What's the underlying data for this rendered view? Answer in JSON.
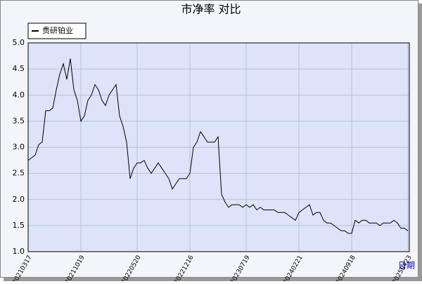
{
  "chart_data": {
    "type": "line",
    "title": "市净率  对比",
    "x_label": "日期",
    "categories": [
      "20210317",
      null,
      null,
      null,
      null,
      null,
      null,
      null,
      null,
      null,
      null,
      null,
      null,
      null,
      null,
      "20211019",
      null,
      null,
      null,
      null,
      null,
      null,
      null,
      null,
      null,
      null,
      null,
      null,
      null,
      null,
      null,
      "20220520",
      null,
      null,
      null,
      null,
      null,
      null,
      null,
      null,
      null,
      null,
      null,
      null,
      null,
      null,
      "20221216",
      null,
      null,
      null,
      null,
      null,
      null,
      null,
      null,
      null,
      null,
      null,
      null,
      null,
      null,
      null,
      "20230719",
      null,
      null,
      null,
      null,
      null,
      null,
      null,
      null,
      null,
      null,
      null,
      null,
      null,
      null,
      "20240221",
      null,
      null,
      null,
      null,
      null,
      null,
      null,
      null,
      null,
      null,
      null,
      null,
      null,
      null,
      "20240918",
      null,
      null,
      null,
      null,
      null,
      null,
      null,
      null,
      null,
      null,
      null,
      null,
      null,
      null,
      null,
      "20250423"
    ],
    "series": [
      {
        "name": "贵研铂业",
        "color": "#000000",
        "values": [
          2.75,
          2.8,
          2.85,
          3.05,
          3.1,
          3.7,
          3.7,
          3.75,
          4.1,
          4.4,
          4.6,
          4.3,
          4.7,
          4.1,
          3.9,
          3.5,
          3.6,
          3.9,
          4.0,
          4.2,
          4.1,
          3.9,
          3.8,
          4.0,
          4.1,
          4.2,
          3.6,
          3.4,
          3.1,
          2.4,
          2.6,
          2.7,
          2.7,
          2.75,
          2.6,
          2.5,
          2.6,
          2.7,
          2.6,
          2.5,
          2.4,
          2.2,
          2.3,
          2.4,
          2.4,
          2.4,
          2.5,
          3.0,
          3.1,
          3.3,
          3.2,
          3.1,
          3.1,
          3.1,
          3.2,
          2.1,
          1.95,
          1.85,
          1.9,
          1.9,
          1.9,
          1.85,
          1.9,
          1.85,
          1.9,
          1.8,
          1.85,
          1.8,
          1.8,
          1.8,
          1.8,
          1.75,
          1.75,
          1.75,
          1.7,
          1.65,
          1.6,
          1.75,
          1.8,
          1.85,
          1.9,
          1.7,
          1.75,
          1.75,
          1.6,
          1.55,
          1.55,
          1.5,
          1.45,
          1.4,
          1.4,
          1.35,
          1.35,
          1.6,
          1.55,
          1.6,
          1.6,
          1.55,
          1.55,
          1.55,
          1.5,
          1.55,
          1.55,
          1.55,
          1.6,
          1.55,
          1.45,
          1.45,
          1.4
        ]
      }
    ],
    "ylim": [
      1.0,
      5.0
    ],
    "yticks": [
      {
        "value": 1.0,
        "label": "1.0"
      },
      {
        "value": 1.5,
        "label": "1.5"
      },
      {
        "value": 2.0,
        "label": "2.0"
      },
      {
        "value": 2.5,
        "label": "2.5"
      },
      {
        "value": 3.0,
        "label": "3.0"
      },
      {
        "value": 3.5,
        "label": "3.5"
      },
      {
        "value": 4.0,
        "label": "4.0"
      },
      {
        "value": 4.5,
        "label": "4.5"
      },
      {
        "value": 5.0,
        "label": "5.0"
      }
    ],
    "grid": true,
    "legend": "top-left"
  }
}
